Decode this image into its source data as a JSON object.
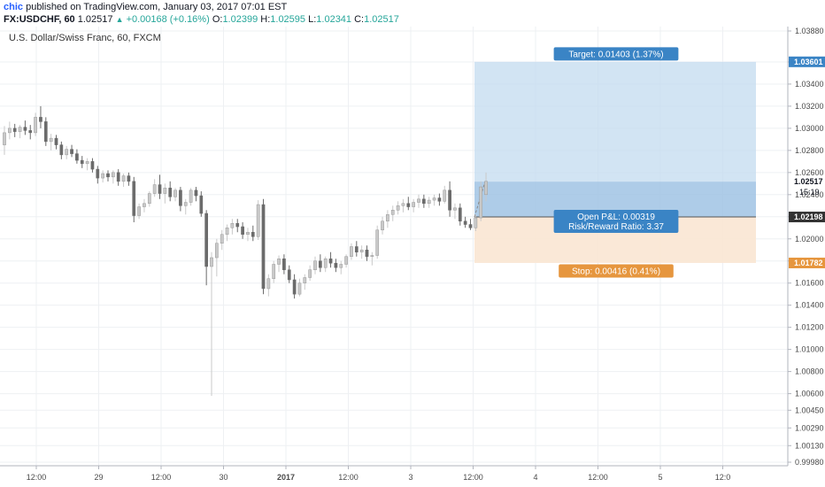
{
  "header": {
    "user": "chic",
    "published_text": "published on TradingView.com, January 03, 2017 07:01 EST",
    "symbol": "FX:USDCHF, 60",
    "last": "1.02517",
    "change": "+0.00168 (+0.16%)",
    "open_label": "O:",
    "open": "1.02399",
    "high_label": "H:",
    "high": "1.02595",
    "low_label": "L:",
    "low": "1.02341",
    "close_label": "C:",
    "close": "1.02517"
  },
  "chart_data": {
    "type": "candlestick",
    "title": "U.S. Dollar/Swiss Franc, 60, FXCM",
    "ylim": [
      0.9998,
      1.0388
    ],
    "y_ticks": [
      "1.03880",
      "1.03600",
      "1.03400",
      "1.03200",
      "1.03000",
      "1.02800",
      "1.02600",
      "1.02400",
      "1.02200",
      "1.02000",
      "1.01800",
      "1.01600",
      "1.01400",
      "1.01200",
      "1.01000",
      "1.00800",
      "1.00600",
      "1.00450",
      "1.00290",
      "1.00130",
      "0.99980"
    ],
    "x_ticks": [
      "12:00",
      "29",
      "12:00",
      "30",
      "2017",
      "12:00",
      "3",
      "12:00",
      "4",
      "12:00",
      "5",
      "12:0"
    ],
    "price_labels": {
      "target_level": "1.03601",
      "current_price": "1.02517",
      "countdown": "15:19",
      "entry_level": "1.02198",
      "stop_level": "1.01782"
    },
    "position": {
      "entry": 1.02198,
      "target": 1.03601,
      "stop": 1.01782,
      "current": 1.02517,
      "target_label": "Target: 0.01403 (1.37%)",
      "pnl_label": "Open P&L: 0.00319",
      "rr_label": "Risk/Reward Ratio: 3.37",
      "stop_label": "Stop: 0.00416 (0.41%)"
    },
    "candles": [
      {
        "o": 1.0285,
        "h": 1.0302,
        "l": 1.0276,
        "c": 1.0296
      },
      {
        "o": 1.0296,
        "h": 1.0306,
        "l": 1.029,
        "c": 1.03
      },
      {
        "o": 1.03,
        "h": 1.0304,
        "l": 1.0292,
        "c": 1.0297
      },
      {
        "o": 1.0297,
        "h": 1.0303,
        "l": 1.0291,
        "c": 1.0301
      },
      {
        "o": 1.0301,
        "h": 1.0307,
        "l": 1.0294,
        "c": 1.0298
      },
      {
        "o": 1.0298,
        "h": 1.0303,
        "l": 1.029,
        "c": 1.0296
      },
      {
        "o": 1.0296,
        "h": 1.0314,
        "l": 1.0293,
        "c": 1.031
      },
      {
        "o": 1.031,
        "h": 1.032,
        "l": 1.03,
        "c": 1.0306
      },
      {
        "o": 1.0306,
        "h": 1.031,
        "l": 1.0284,
        "c": 1.0288
      },
      {
        "o": 1.0288,
        "h": 1.0295,
        "l": 1.028,
        "c": 1.0291
      },
      {
        "o": 1.0291,
        "h": 1.0294,
        "l": 1.0281,
        "c": 1.0285
      },
      {
        "o": 1.0285,
        "h": 1.0288,
        "l": 1.0272,
        "c": 1.0276
      },
      {
        "o": 1.0276,
        "h": 1.0284,
        "l": 1.0272,
        "c": 1.0281
      },
      {
        "o": 1.0281,
        "h": 1.0285,
        "l": 1.0274,
        "c": 1.0277
      },
      {
        "o": 1.0277,
        "h": 1.0281,
        "l": 1.0268,
        "c": 1.0271
      },
      {
        "o": 1.0271,
        "h": 1.0275,
        "l": 1.0264,
        "c": 1.0268
      },
      {
        "o": 1.0268,
        "h": 1.0273,
        "l": 1.0262,
        "c": 1.027
      },
      {
        "o": 1.027,
        "h": 1.0273,
        "l": 1.026,
        "c": 1.0263
      },
      {
        "o": 1.0263,
        "h": 1.0266,
        "l": 1.025,
        "c": 1.0255
      },
      {
        "o": 1.0255,
        "h": 1.0262,
        "l": 1.0251,
        "c": 1.0259
      },
      {
        "o": 1.0259,
        "h": 1.0262,
        "l": 1.0252,
        "c": 1.0256
      },
      {
        "o": 1.0256,
        "h": 1.0262,
        "l": 1.025,
        "c": 1.026
      },
      {
        "o": 1.026,
        "h": 1.0263,
        "l": 1.0248,
        "c": 1.0252
      },
      {
        "o": 1.0252,
        "h": 1.0259,
        "l": 1.0247,
        "c": 1.0257
      },
      {
        "o": 1.0257,
        "h": 1.026,
        "l": 1.0248,
        "c": 1.0252
      },
      {
        "o": 1.0252,
        "h": 1.0256,
        "l": 1.0215,
        "c": 1.0221
      },
      {
        "o": 1.0221,
        "h": 1.0232,
        "l": 1.0218,
        "c": 1.0229
      },
      {
        "o": 1.0229,
        "h": 1.0236,
        "l": 1.0224,
        "c": 1.0232
      },
      {
        "o": 1.0232,
        "h": 1.0243,
        "l": 1.0229,
        "c": 1.0241
      },
      {
        "o": 1.0241,
        "h": 1.0254,
        "l": 1.0238,
        "c": 1.0249
      },
      {
        "o": 1.0249,
        "h": 1.0258,
        "l": 1.0236,
        "c": 1.0241
      },
      {
        "o": 1.0241,
        "h": 1.025,
        "l": 1.0232,
        "c": 1.0246
      },
      {
        "o": 1.0246,
        "h": 1.0252,
        "l": 1.0234,
        "c": 1.0238
      },
      {
        "o": 1.0238,
        "h": 1.0246,
        "l": 1.0234,
        "c": 1.0244
      },
      {
        "o": 1.0244,
        "h": 1.0247,
        "l": 1.0225,
        "c": 1.023
      },
      {
        "o": 1.023,
        "h": 1.0236,
        "l": 1.0222,
        "c": 1.0233
      },
      {
        "o": 1.0233,
        "h": 1.0246,
        "l": 1.023,
        "c": 1.0244
      },
      {
        "o": 1.0244,
        "h": 1.0247,
        "l": 1.0234,
        "c": 1.0239
      },
      {
        "o": 1.0239,
        "h": 1.0243,
        "l": 1.022,
        "c": 1.0223
      },
      {
        "o": 1.0223,
        "h": 1.0226,
        "l": 1.0158,
        "c": 1.0175
      },
      {
        "o": 1.0175,
        "h": 1.0188,
        "l": 1.0058,
        "c": 1.0183
      },
      {
        "o": 1.0183,
        "h": 1.02,
        "l": 1.0166,
        "c": 1.0196
      },
      {
        "o": 1.0196,
        "h": 1.0208,
        "l": 1.019,
        "c": 1.0204
      },
      {
        "o": 1.0204,
        "h": 1.0213,
        "l": 1.0198,
        "c": 1.021
      },
      {
        "o": 1.021,
        "h": 1.0218,
        "l": 1.0204,
        "c": 1.0214
      },
      {
        "o": 1.0214,
        "h": 1.0218,
        "l": 1.0206,
        "c": 1.0211
      },
      {
        "o": 1.0211,
        "h": 1.0215,
        "l": 1.02,
        "c": 1.0204
      },
      {
        "o": 1.0204,
        "h": 1.021,
        "l": 1.0198,
        "c": 1.0206
      },
      {
        "o": 1.0206,
        "h": 1.0212,
        "l": 1.0198,
        "c": 1.0202
      },
      {
        "o": 1.0202,
        "h": 1.0235,
        "l": 1.0199,
        "c": 1.0231
      },
      {
        "o": 1.0231,
        "h": 1.0236,
        "l": 1.015,
        "c": 1.0155
      },
      {
        "o": 1.0155,
        "h": 1.0168,
        "l": 1.0148,
        "c": 1.0164
      },
      {
        "o": 1.0164,
        "h": 1.018,
        "l": 1.016,
        "c": 1.0177
      },
      {
        "o": 1.0177,
        "h": 1.0185,
        "l": 1.017,
        "c": 1.0182
      },
      {
        "o": 1.0182,
        "h": 1.0186,
        "l": 1.0168,
        "c": 1.0172
      },
      {
        "o": 1.0172,
        "h": 1.0176,
        "l": 1.016,
        "c": 1.0163
      },
      {
        "o": 1.0163,
        "h": 1.0168,
        "l": 1.0146,
        "c": 1.015
      },
      {
        "o": 1.015,
        "h": 1.0164,
        "l": 1.0148,
        "c": 1.016
      },
      {
        "o": 1.016,
        "h": 1.0168,
        "l": 1.0154,
        "c": 1.0165
      },
      {
        "o": 1.0165,
        "h": 1.0176,
        "l": 1.0162,
        "c": 1.0172
      },
      {
        "o": 1.0172,
        "h": 1.0184,
        "l": 1.0168,
        "c": 1.018
      },
      {
        "o": 1.018,
        "h": 1.0186,
        "l": 1.017,
        "c": 1.0174
      },
      {
        "o": 1.0174,
        "h": 1.0184,
        "l": 1.017,
        "c": 1.0182
      },
      {
        "o": 1.0182,
        "h": 1.0188,
        "l": 1.0174,
        "c": 1.0178
      },
      {
        "o": 1.0178,
        "h": 1.0182,
        "l": 1.017,
        "c": 1.0174
      },
      {
        "o": 1.0174,
        "h": 1.018,
        "l": 1.0168,
        "c": 1.0177
      },
      {
        "o": 1.0177,
        "h": 1.0186,
        "l": 1.0174,
        "c": 1.0184
      },
      {
        "o": 1.0184,
        "h": 1.0196,
        "l": 1.0181,
        "c": 1.0193
      },
      {
        "o": 1.0193,
        "h": 1.0198,
        "l": 1.0184,
        "c": 1.0188
      },
      {
        "o": 1.0188,
        "h": 1.0194,
        "l": 1.0182,
        "c": 1.019
      },
      {
        "o": 1.019,
        "h": 1.0194,
        "l": 1.018,
        "c": 1.0184
      },
      {
        "o": 1.0184,
        "h": 1.0188,
        "l": 1.0176,
        "c": 1.0185
      },
      {
        "o": 1.0185,
        "h": 1.0212,
        "l": 1.0182,
        "c": 1.0208
      },
      {
        "o": 1.0208,
        "h": 1.022,
        "l": 1.0204,
        "c": 1.0216
      },
      {
        "o": 1.0216,
        "h": 1.0226,
        "l": 1.021,
        "c": 1.0222
      },
      {
        "o": 1.0222,
        "h": 1.023,
        "l": 1.0216,
        "c": 1.0226
      },
      {
        "o": 1.0226,
        "h": 1.0234,
        "l": 1.0222,
        "c": 1.023
      },
      {
        "o": 1.023,
        "h": 1.0236,
        "l": 1.0224,
        "c": 1.0232
      },
      {
        "o": 1.0232,
        "h": 1.0238,
        "l": 1.0226,
        "c": 1.0229
      },
      {
        "o": 1.0229,
        "h": 1.0236,
        "l": 1.0224,
        "c": 1.0233
      },
      {
        "o": 1.0233,
        "h": 1.024,
        "l": 1.0228,
        "c": 1.0236
      },
      {
        "o": 1.0236,
        "h": 1.024,
        "l": 1.0228,
        "c": 1.0232
      },
      {
        "o": 1.0232,
        "h": 1.0238,
        "l": 1.0228,
        "c": 1.0235
      },
      {
        "o": 1.0235,
        "h": 1.024,
        "l": 1.023,
        "c": 1.0237
      },
      {
        "o": 1.0237,
        "h": 1.0241,
        "l": 1.023,
        "c": 1.0234
      },
      {
        "o": 1.0234,
        "h": 1.0248,
        "l": 1.0232,
        "c": 1.0244
      },
      {
        "o": 1.0244,
        "h": 1.0252,
        "l": 1.022,
        "c": 1.0226
      },
      {
        "o": 1.0226,
        "h": 1.0232,
        "l": 1.0218,
        "c": 1.0228
      },
      {
        "o": 1.0228,
        "h": 1.0232,
        "l": 1.0212,
        "c": 1.0216
      },
      {
        "o": 1.0216,
        "h": 1.022,
        "l": 1.021,
        "c": 1.0213
      },
      {
        "o": 1.0213,
        "h": 1.0218,
        "l": 1.0208,
        "c": 1.021
      },
      {
        "o": 1.021,
        "h": 1.0222,
        "l": 1.0207,
        "c": 1.0219
      },
      {
        "o": 1.0219,
        "h": 1.0252,
        "l": 1.0216,
        "c": 1.0247
      },
      {
        "o": 1.024,
        "h": 1.026,
        "l": 1.0234,
        "c": 1.0252
      }
    ]
  },
  "colors": {
    "up_candle": "#c9c9c9",
    "down_candle": "#6b6b6b",
    "target_zone": "#c3dbef",
    "stop_zone": "#f9e6d3",
    "target_badge": "#3a84c5",
    "stop_badge": "#e6963e",
    "grid": "#eef0f3",
    "axis_text": "#4a4a4a"
  }
}
